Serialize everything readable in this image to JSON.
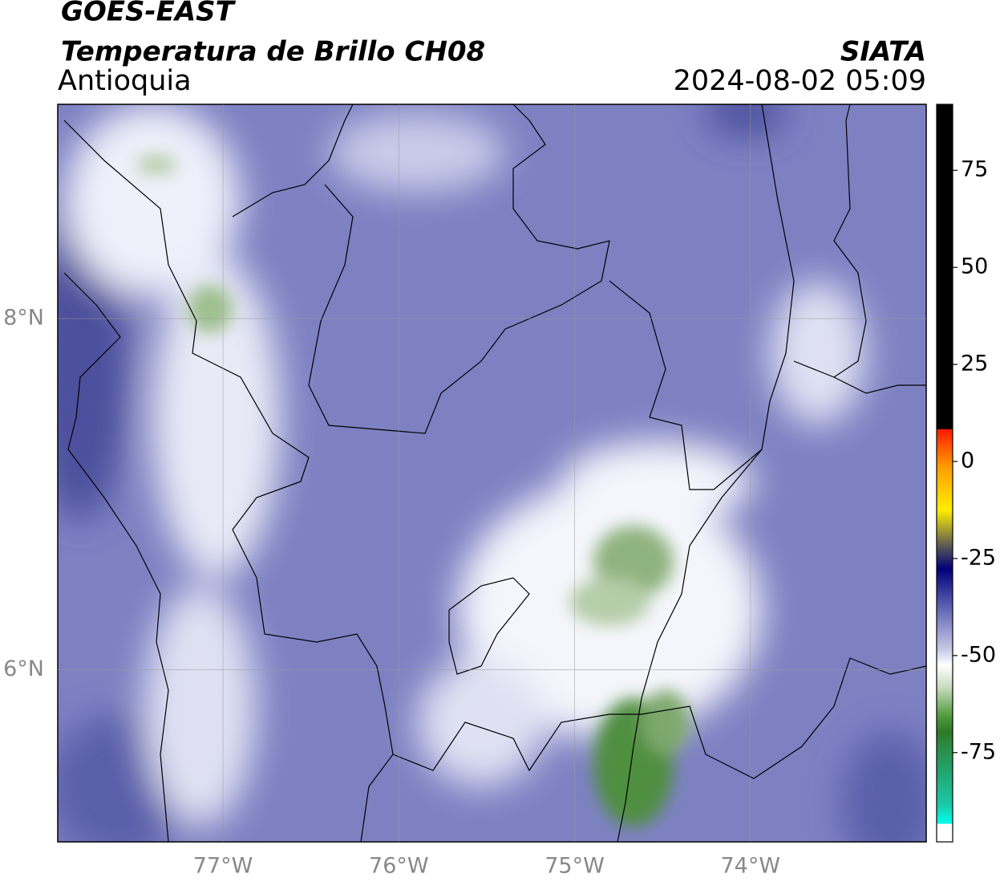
{
  "header": {
    "title": "GOES-EAST",
    "subtitle": "Temperatura de Brillo CH08",
    "region": "Antioquia",
    "source": "SIATA",
    "datetime": "2024-08-02 05:09"
  },
  "map": {
    "xlim": [
      -77.94,
      -73.0
    ],
    "ylim": [
      5.02,
      9.22
    ],
    "xticks": [
      {
        "value": -77,
        "label": "77°W"
      },
      {
        "value": -76,
        "label": "76°W"
      },
      {
        "value": -75,
        "label": "75°W"
      },
      {
        "value": -74,
        "label": "74°W"
      }
    ],
    "yticks": [
      {
        "value": 6,
        "label": "6°N"
      },
      {
        "value": 8,
        "label": "8°N"
      }
    ],
    "grid": true
  },
  "colorbar": {
    "lim": [
      -98,
      92
    ],
    "ticks": [
      75,
      50,
      25,
      0,
      -25,
      -50,
      -75
    ]
  }
}
